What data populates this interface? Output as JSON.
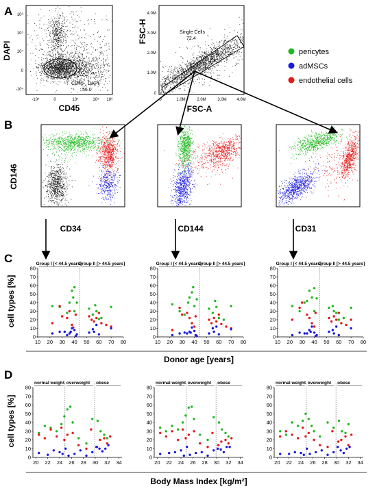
{
  "panels": {
    "A": "A",
    "B": "B",
    "C": "C",
    "D": "D"
  },
  "flow": {
    "dapi_cd45": {
      "ylabel": "DAPI",
      "xlabel": "CD45",
      "yticks": [
        "10⁶",
        "10⁵",
        "10⁴",
        "0",
        "-10⁴"
      ],
      "xticks": [
        "-10⁴",
        "0",
        "10⁴",
        "10⁵",
        "10⁶"
      ],
      "gate_label": "CD45-, DAPI-",
      "gate_value": "56.0"
    },
    "fsc": {
      "ylabel": "FSC-H",
      "xlabel": "FSC-A",
      "yticks": [
        "4.0M",
        "3.0M",
        "2.0M",
        "1.0M",
        "0"
      ],
      "xticks": [
        "0",
        "1.0M",
        "2.0M",
        "3.0M",
        "4.0M"
      ],
      "gate_label": "Single Cells",
      "gate_value": "72.4"
    },
    "b_plots": [
      {
        "xlabel": "CD34",
        "ylabel": "CD146"
      },
      {
        "xlabel": "CD144",
        "ylabel": ""
      },
      {
        "xlabel": "CD31",
        "ylabel": ""
      }
    ]
  },
  "legend": [
    {
      "label": "pericytes",
      "color": "#1fb81f"
    },
    {
      "label": "adMSCs",
      "color": "#1a1adf"
    },
    {
      "label": "endothelial cells",
      "color": "#e41a1a"
    }
  ],
  "colors": {
    "pericytes": "#1fb81f",
    "adMSCs": "#1a1adf",
    "endothelial": "#e41a1a",
    "dots": "#222222"
  },
  "chart_data": [
    {
      "type": "scatter",
      "panel": "C",
      "ylabel": "cell types [%]",
      "xlabel": "Donor age [years]",
      "xlim": [
        10,
        80
      ],
      "ylim": [
        0,
        80
      ],
      "xticks": [
        "10",
        "20",
        "30",
        "40",
        "50",
        "60",
        "70",
        "80"
      ],
      "yticks": [
        "0",
        "10",
        "20",
        "30",
        "40",
        "50",
        "60",
        "70",
        "80"
      ],
      "group_labels": [
        "Group I [< 44.5 years]",
        "Group II [> 44.5 years]"
      ],
      "divider_x": 44.5,
      "series": [
        {
          "name": "pericytes",
          "x": [
            22,
            28,
            34,
            36,
            38,
            39,
            40,
            40,
            42,
            52,
            55,
            57,
            58,
            60,
            62,
            70
          ],
          "y": [
            36,
            35,
            28,
            40,
            54,
            46,
            58,
            30,
            40,
            33,
            26,
            37,
            30,
            21,
            22,
            35
          ]
        },
        {
          "name": "endothelial cells",
          "x": [
            22,
            28,
            30,
            34,
            36,
            38,
            39,
            41,
            52,
            54,
            56,
            58,
            60,
            62,
            66,
            70
          ],
          "y": [
            16,
            36,
            24,
            22,
            30,
            14,
            11,
            26,
            24,
            20,
            18,
            22,
            28,
            16,
            14,
            12
          ]
        },
        {
          "name": "adMSCs",
          "x": [
            22,
            28,
            32,
            34,
            36,
            37,
            38,
            40,
            41,
            42,
            52,
            55,
            56,
            58,
            60,
            70
          ],
          "y": [
            4,
            6,
            6,
            2,
            4,
            6,
            10,
            8,
            1,
            3,
            5,
            9,
            6,
            14,
            3,
            10
          ]
        }
      ]
    },
    {
      "type": "scatter",
      "panel": "C",
      "ylabel": "",
      "xlabel": "Donor age [years]",
      "xlim": [
        10,
        80
      ],
      "ylim": [
        0,
        80
      ],
      "xticks": [
        "10",
        "20",
        "30",
        "40",
        "50",
        "60",
        "70",
        "80"
      ],
      "yticks": [
        "0",
        "10",
        "20",
        "30",
        "40",
        "50",
        "60",
        "70",
        "80"
      ],
      "group_labels": [
        "Group I [< 44.5 years]",
        "Group II [> 44.5 years]"
      ],
      "divider_x": 44.5,
      "series": [
        {
          "name": "pericytes",
          "x": [
            22,
            28,
            32,
            35,
            36,
            38,
            39,
            40,
            42,
            52,
            55,
            57,
            58,
            60,
            64,
            70
          ],
          "y": [
            38,
            30,
            26,
            40,
            46,
            52,
            58,
            36,
            44,
            33,
            28,
            42,
            35,
            22,
            20,
            36
          ]
        },
        {
          "name": "endothelial cells",
          "x": [
            22,
            28,
            30,
            34,
            36,
            38,
            40,
            41,
            52,
            54,
            56,
            58,
            60,
            62,
            66,
            70
          ],
          "y": [
            8,
            34,
            26,
            28,
            22,
            16,
            12,
            24,
            20,
            16,
            22,
            18,
            26,
            15,
            12,
            10
          ]
        },
        {
          "name": "adMSCs",
          "x": [
            22,
            28,
            32,
            34,
            36,
            37,
            38,
            40,
            41,
            42,
            52,
            55,
            56,
            58,
            60,
            70
          ],
          "y": [
            2,
            4,
            5,
            4,
            6,
            5,
            11,
            7,
            2,
            1,
            4,
            10,
            6,
            12,
            3,
            9
          ]
        }
      ]
    },
    {
      "type": "scatter",
      "panel": "C",
      "ylabel": "",
      "xlabel": "Donor age [years]",
      "xlim": [
        10,
        80
      ],
      "ylim": [
        0,
        80
      ],
      "xticks": [
        "10",
        "20",
        "30",
        "40",
        "50",
        "60",
        "70",
        "80"
      ],
      "yticks": [
        "0",
        "10",
        "20",
        "30",
        "40",
        "50",
        "60",
        "70",
        "80"
      ],
      "group_labels": [
        "Group I [< 44.5 years]",
        "Group II [> 44.5 years]"
      ],
      "divider_x": 44.5,
      "series": [
        {
          "name": "pericytes",
          "x": [
            22,
            28,
            32,
            34,
            36,
            38,
            40,
            40,
            42,
            52,
            55,
            56,
            58,
            60,
            64,
            70
          ],
          "y": [
            36,
            30,
            40,
            42,
            54,
            46,
            57,
            30,
            45,
            34,
            36,
            30,
            28,
            20,
            22,
            34
          ]
        },
        {
          "name": "endothelial cells",
          "x": [
            22,
            28,
            30,
            34,
            36,
            38,
            40,
            41,
            52,
            54,
            56,
            58,
            60,
            62,
            66,
            70
          ],
          "y": [
            20,
            34,
            40,
            26,
            22,
            16,
            12,
            28,
            22,
            18,
            24,
            20,
            28,
            16,
            14,
            20
          ]
        },
        {
          "name": "adMSCs",
          "x": [
            22,
            28,
            32,
            34,
            36,
            37,
            38,
            40,
            41,
            42,
            52,
            55,
            56,
            58,
            60,
            70
          ],
          "y": [
            2,
            5,
            4,
            4,
            8,
            6,
            12,
            5,
            1,
            2,
            6,
            8,
            4,
            12,
            2,
            10
          ]
        }
      ]
    },
    {
      "type": "scatter",
      "panel": "D",
      "ylabel": "cell types [%]",
      "xlabel": "Body Mass Index [kg/m²]",
      "xlim": [
        19.5,
        34.5
      ],
      "ylim": [
        0,
        80
      ],
      "xticks": [
        "20",
        "22",
        "24",
        "26",
        "28",
        "30",
        "32",
        "34"
      ],
      "yticks": [
        "0",
        "10",
        "20",
        "30",
        "40",
        "50",
        "60",
        "70",
        "80"
      ],
      "group_labels": [
        "normal weight",
        "overweight",
        "obese"
      ],
      "dividers_x": [
        24.9,
        29.9
      ],
      "series": [
        {
          "name": "pericytes",
          "x": [
            20.5,
            21.5,
            22.5,
            23.5,
            24.3,
            24.8,
            25.3,
            25.8,
            26.2,
            27.2,
            28.5,
            29.5,
            30.4,
            30.9,
            31.5,
            32.0
          ],
          "y": [
            28,
            36,
            34,
            30,
            38,
            47,
            55,
            58,
            40,
            22,
            16,
            44,
            42,
            30,
            26,
            22
          ]
        },
        {
          "name": "endothelial cells",
          "x": [
            20.5,
            21.5,
            22.5,
            23.5,
            24.3,
            24.8,
            25.3,
            26.2,
            27.2,
            28.5,
            29.3,
            30.3,
            30.8,
            31.5,
            32.0,
            32.5
          ],
          "y": [
            26,
            22,
            32,
            24,
            34,
            20,
            26,
            28,
            14,
            10,
            32,
            12,
            20,
            22,
            16,
            24
          ]
        },
        {
          "name": "adMSCs",
          "x": [
            20.5,
            22.0,
            23.0,
            24.0,
            24.5,
            25.0,
            25.5,
            26.5,
            27.5,
            28.5,
            29.5,
            30.2,
            30.7,
            31.2,
            31.7,
            32.2
          ],
          "y": [
            5,
            3,
            8,
            6,
            4,
            10,
            2,
            4,
            8,
            2,
            6,
            12,
            10,
            7,
            10,
            14
          ]
        }
      ]
    },
    {
      "type": "scatter",
      "panel": "D",
      "ylabel": "",
      "xlabel": "Body Mass Index [kg/m²]",
      "xlim": [
        19.5,
        34.5
      ],
      "ylim": [
        0,
        80
      ],
      "xticks": [
        "20",
        "22",
        "24",
        "26",
        "28",
        "30",
        "32",
        "34"
      ],
      "yticks": [
        "0",
        "10",
        "20",
        "30",
        "40",
        "50",
        "60",
        "70",
        "80"
      ],
      "group_labels": [
        "normal weight",
        "overweight",
        "obese"
      ],
      "dividers_x": [
        24.9,
        29.9
      ],
      "series": [
        {
          "name": "pericytes",
          "x": [
            20.5,
            21.5,
            22.5,
            23.5,
            24.3,
            24.8,
            25.3,
            25.8,
            26.2,
            27.2,
            28.5,
            29.5,
            30.4,
            30.9,
            31.5,
            32.0
          ],
          "y": [
            34,
            30,
            36,
            32,
            40,
            48,
            57,
            58,
            44,
            26,
            20,
            46,
            40,
            32,
            28,
            24
          ]
        },
        {
          "name": "endothelial cells",
          "x": [
            20.5,
            21.5,
            22.5,
            23.5,
            24.3,
            24.8,
            25.3,
            26.2,
            27.2,
            28.5,
            29.3,
            30.3,
            30.8,
            31.5,
            32.0,
            32.5
          ],
          "y": [
            28,
            24,
            30,
            20,
            32,
            22,
            26,
            30,
            16,
            12,
            28,
            14,
            18,
            20,
            16,
            22
          ]
        },
        {
          "name": "adMSCs",
          "x": [
            20.5,
            22.0,
            23.0,
            24.0,
            24.5,
            25.0,
            25.5,
            26.5,
            27.5,
            28.5,
            29.5,
            30.2,
            30.7,
            31.2,
            31.7,
            32.2
          ],
          "y": [
            4,
            5,
            6,
            8,
            2,
            12,
            3,
            5,
            6,
            2,
            8,
            10,
            9,
            6,
            12,
            12
          ]
        }
      ]
    },
    {
      "type": "scatter",
      "panel": "D",
      "ylabel": "",
      "xlabel": "Body Mass Index [kg/m²]",
      "xlim": [
        19.5,
        34.5
      ],
      "ylim": [
        0,
        80
      ],
      "xticks": [
        "20",
        "22",
        "24",
        "26",
        "28",
        "30",
        "32",
        "34"
      ],
      "yticks": [
        "0",
        "10",
        "20",
        "30",
        "40",
        "50",
        "60",
        "70",
        "80"
      ],
      "group_labels": [
        "normal weight",
        "overweight",
        "obese"
      ],
      "dividers_x": [
        24.9,
        29.9
      ],
      "series": [
        {
          "name": "pericytes",
          "x": [
            20.5,
            21.5,
            22.5,
            23.5,
            24.3,
            24.8,
            25.3,
            25.8,
            26.2,
            27.2,
            28.5,
            29.5,
            30.4,
            30.9,
            31.5,
            32.0
          ],
          "y": [
            30,
            26,
            40,
            36,
            42,
            50,
            44,
            36,
            30,
            24,
            40,
            34,
            42,
            30,
            28,
            38
          ]
        },
        {
          "name": "endothelial cells",
          "x": [
            20.5,
            21.5,
            22.5,
            23.5,
            24.3,
            24.8,
            25.3,
            26.2,
            27.2,
            28.5,
            29.3,
            30.3,
            30.8,
            31.5,
            32.0,
            32.5
          ],
          "y": [
            24,
            30,
            26,
            22,
            34,
            24,
            28,
            20,
            14,
            12,
            30,
            18,
            20,
            24,
            14,
            26
          ]
        },
        {
          "name": "adMSCs",
          "x": [
            20.5,
            22.0,
            23.0,
            24.0,
            24.5,
            25.0,
            25.5,
            26.5,
            27.5,
            28.5,
            29.5,
            30.2,
            30.7,
            31.2,
            31.7,
            32.2
          ],
          "y": [
            4,
            4,
            6,
            5,
            3,
            10,
            4,
            6,
            8,
            3,
            6,
            12,
            8,
            5,
            10,
            12
          ]
        }
      ]
    }
  ]
}
